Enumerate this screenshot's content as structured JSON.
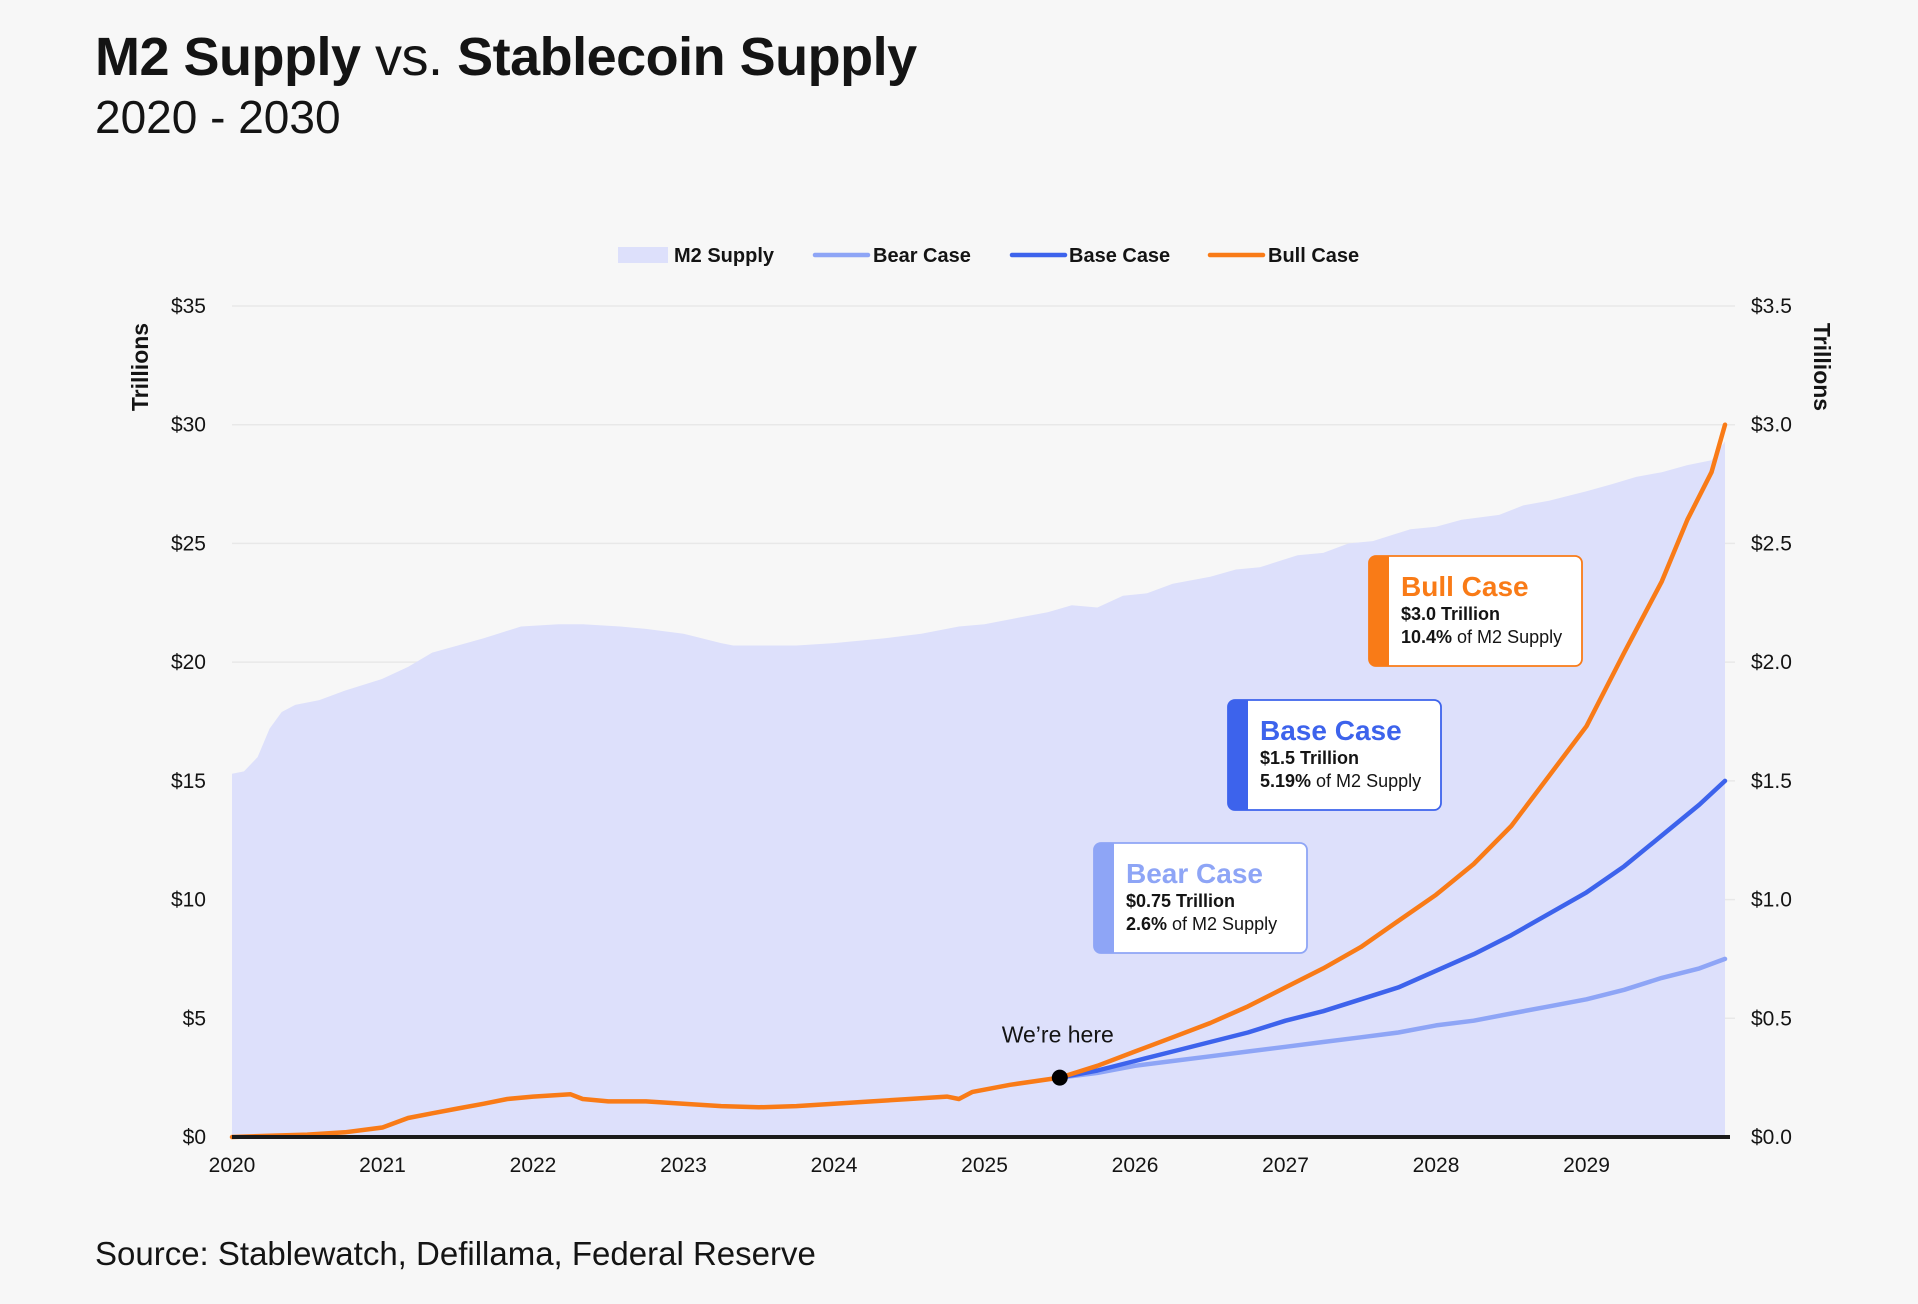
{
  "header": {
    "title_part1": "M2 Supply",
    "title_vs": "vs.",
    "title_part2": "Stablecoin Supply",
    "subtitle": "2020 - 2030"
  },
  "source": "Source: Stablewatch, Defillama, Federal Reserve",
  "colors": {
    "m2_fill": "#dde0fb",
    "bear": "#8ea5f6",
    "base": "#3d63ec",
    "bull": "#f97b17",
    "grid": "#e8e8e8",
    "baseline": "#1a1a1a"
  },
  "chart_data": {
    "type": "area",
    "x_ticks": [
      "2020",
      "2021",
      "2022",
      "2023",
      "2024",
      "2025",
      "2026",
      "2027",
      "2028",
      "2029"
    ],
    "x_range": [
      2020,
      2029.92
    ],
    "left_axis": {
      "label": "Trillions",
      "range": [
        0,
        35
      ],
      "ticks": [
        0,
        5,
        10,
        15,
        20,
        25,
        30,
        35
      ],
      "tick_labels": [
        "$0",
        "$5",
        "$10",
        "$15",
        "$20",
        "$25",
        "$30",
        "$35"
      ]
    },
    "right_axis": {
      "label": "Trillions",
      "range": [
        0,
        3.5
      ],
      "ticks": [
        0,
        0.5,
        1.0,
        1.5,
        2.0,
        2.5,
        3.0,
        3.5
      ],
      "tick_labels": [
        "$0.0",
        "$0.5",
        "$1.0",
        "$1.5",
        "$2.0",
        "$2.5",
        "$3.0",
        "$3.5"
      ]
    },
    "grid": true,
    "legend_position": "top-center",
    "legend": [
      "M2 Supply",
      "Bear Case",
      "Base Case",
      "Bull Case"
    ],
    "series": [
      {
        "name": "M2 Supply",
        "axis": "left",
        "style": "area",
        "points": [
          [
            2020,
            15.3
          ],
          [
            2020.08,
            15.4
          ],
          [
            2020.17,
            16.0
          ],
          [
            2020.25,
            17.2
          ],
          [
            2020.33,
            17.9
          ],
          [
            2020.42,
            18.2
          ],
          [
            2020.58,
            18.4
          ],
          [
            2020.75,
            18.8
          ],
          [
            2021,
            19.3
          ],
          [
            2021.17,
            19.8
          ],
          [
            2021.33,
            20.4
          ],
          [
            2021.5,
            20.7
          ],
          [
            2021.67,
            21.0
          ],
          [
            2021.92,
            21.5
          ],
          [
            2022.17,
            21.6
          ],
          [
            2022.33,
            21.6
          ],
          [
            2022.58,
            21.5
          ],
          [
            2022.75,
            21.4
          ],
          [
            2023,
            21.2
          ],
          [
            2023.25,
            20.8
          ],
          [
            2023.33,
            20.7
          ],
          [
            2023.5,
            20.7
          ],
          [
            2023.75,
            20.7
          ],
          [
            2024,
            20.8
          ],
          [
            2024.33,
            21.0
          ],
          [
            2024.58,
            21.2
          ],
          [
            2024.83,
            21.5
          ],
          [
            2025,
            21.6
          ],
          [
            2025.25,
            21.9
          ],
          [
            2025.42,
            22.1
          ],
          [
            2025.58,
            22.4
          ],
          [
            2025.75,
            22.3
          ],
          [
            2025.92,
            22.8
          ],
          [
            2026.08,
            22.9
          ],
          [
            2026.25,
            23.3
          ],
          [
            2026.5,
            23.6
          ],
          [
            2026.67,
            23.9
          ],
          [
            2026.83,
            24.0
          ],
          [
            2027.08,
            24.5
          ],
          [
            2027.25,
            24.6
          ],
          [
            2027.42,
            25.0
          ],
          [
            2027.58,
            25.1
          ],
          [
            2027.83,
            25.6
          ],
          [
            2028,
            25.7
          ],
          [
            2028.17,
            26.0
          ],
          [
            2028.42,
            26.2
          ],
          [
            2028.58,
            26.6
          ],
          [
            2028.75,
            26.8
          ],
          [
            2029,
            27.2
          ],
          [
            2029.17,
            27.5
          ],
          [
            2029.33,
            27.8
          ],
          [
            2029.5,
            28.0
          ],
          [
            2029.67,
            28.3
          ],
          [
            2029.83,
            28.5
          ],
          [
            2029.92,
            29.3
          ]
        ]
      },
      {
        "name": "Bear Case",
        "axis": "right",
        "style": "line",
        "points": [
          [
            2025.5,
            0.25
          ],
          [
            2025.75,
            0.27
          ],
          [
            2026,
            0.3
          ],
          [
            2026.25,
            0.32
          ],
          [
            2026.5,
            0.34
          ],
          [
            2026.75,
            0.36
          ],
          [
            2027,
            0.38
          ],
          [
            2027.25,
            0.4
          ],
          [
            2027.5,
            0.42
          ],
          [
            2027.75,
            0.44
          ],
          [
            2028,
            0.47
          ],
          [
            2028.25,
            0.49
          ],
          [
            2028.5,
            0.52
          ],
          [
            2028.75,
            0.55
          ],
          [
            2029,
            0.58
          ],
          [
            2029.25,
            0.62
          ],
          [
            2029.5,
            0.67
          ],
          [
            2029.75,
            0.71
          ],
          [
            2029.92,
            0.75
          ]
        ]
      },
      {
        "name": "Base Case",
        "axis": "right",
        "style": "line",
        "points": [
          [
            2025.5,
            0.25
          ],
          [
            2025.75,
            0.28
          ],
          [
            2026,
            0.32
          ],
          [
            2026.25,
            0.36
          ],
          [
            2026.5,
            0.4
          ],
          [
            2026.75,
            0.44
          ],
          [
            2027,
            0.49
          ],
          [
            2027.25,
            0.53
          ],
          [
            2027.5,
            0.58
          ],
          [
            2027.75,
            0.63
          ],
          [
            2028,
            0.7
          ],
          [
            2028.25,
            0.77
          ],
          [
            2028.5,
            0.85
          ],
          [
            2028.75,
            0.94
          ],
          [
            2029,
            1.03
          ],
          [
            2029.25,
            1.14
          ],
          [
            2029.5,
            1.27
          ],
          [
            2029.75,
            1.4
          ],
          [
            2029.92,
            1.5
          ]
        ]
      },
      {
        "name": "Bull Case",
        "axis": "right",
        "style": "line",
        "points": [
          [
            2020,
            0.0
          ],
          [
            2020.25,
            0.005
          ],
          [
            2020.5,
            0.01
          ],
          [
            2020.75,
            0.02
          ],
          [
            2021,
            0.04
          ],
          [
            2021.17,
            0.08
          ],
          [
            2021.33,
            0.1
          ],
          [
            2021.5,
            0.12
          ],
          [
            2021.67,
            0.14
          ],
          [
            2021.83,
            0.16
          ],
          [
            2022,
            0.17
          ],
          [
            2022.25,
            0.18
          ],
          [
            2022.33,
            0.16
          ],
          [
            2022.5,
            0.15
          ],
          [
            2022.75,
            0.15
          ],
          [
            2023,
            0.14
          ],
          [
            2023.25,
            0.13
          ],
          [
            2023.5,
            0.125
          ],
          [
            2023.75,
            0.13
          ],
          [
            2024,
            0.14
          ],
          [
            2024.25,
            0.15
          ],
          [
            2024.5,
            0.16
          ],
          [
            2024.75,
            0.17
          ],
          [
            2024.83,
            0.16
          ],
          [
            2024.92,
            0.19
          ],
          [
            2025.17,
            0.22
          ],
          [
            2025.5,
            0.25
          ],
          [
            2025.75,
            0.3
          ],
          [
            2026,
            0.36
          ],
          [
            2026.25,
            0.42
          ],
          [
            2026.5,
            0.48
          ],
          [
            2026.75,
            0.55
          ],
          [
            2027,
            0.63
          ],
          [
            2027.25,
            0.71
          ],
          [
            2027.5,
            0.8
          ],
          [
            2027.75,
            0.91
          ],
          [
            2028,
            1.02
          ],
          [
            2028.25,
            1.15
          ],
          [
            2028.5,
            1.31
          ],
          [
            2028.75,
            1.52
          ],
          [
            2029,
            1.73
          ],
          [
            2029.25,
            2.04
          ],
          [
            2029.5,
            2.34
          ],
          [
            2029.67,
            2.6
          ],
          [
            2029.83,
            2.8
          ],
          [
            2029.92,
            3.0
          ]
        ]
      }
    ],
    "annotations": {
      "here": {
        "label": "We’re here",
        "x": 2025.5,
        "y": 0.25
      },
      "callouts": [
        {
          "key": "bull",
          "title": "Bull Case",
          "value_bold": "$3.0 Trillion",
          "pct_bold": "10.4%",
          "pct_rest": " of M2 Supply"
        },
        {
          "key": "base",
          "title": "Base Case",
          "value_bold": "$1.5 Trillion",
          "pct_bold": "5.19%",
          "pct_rest": " of M2 Supply"
        },
        {
          "key": "bear",
          "title": "Bear Case",
          "value_bold": "$0.75 Trillion",
          "pct_bold": "2.6%",
          "pct_rest": " of M2 Supply"
        }
      ]
    }
  }
}
